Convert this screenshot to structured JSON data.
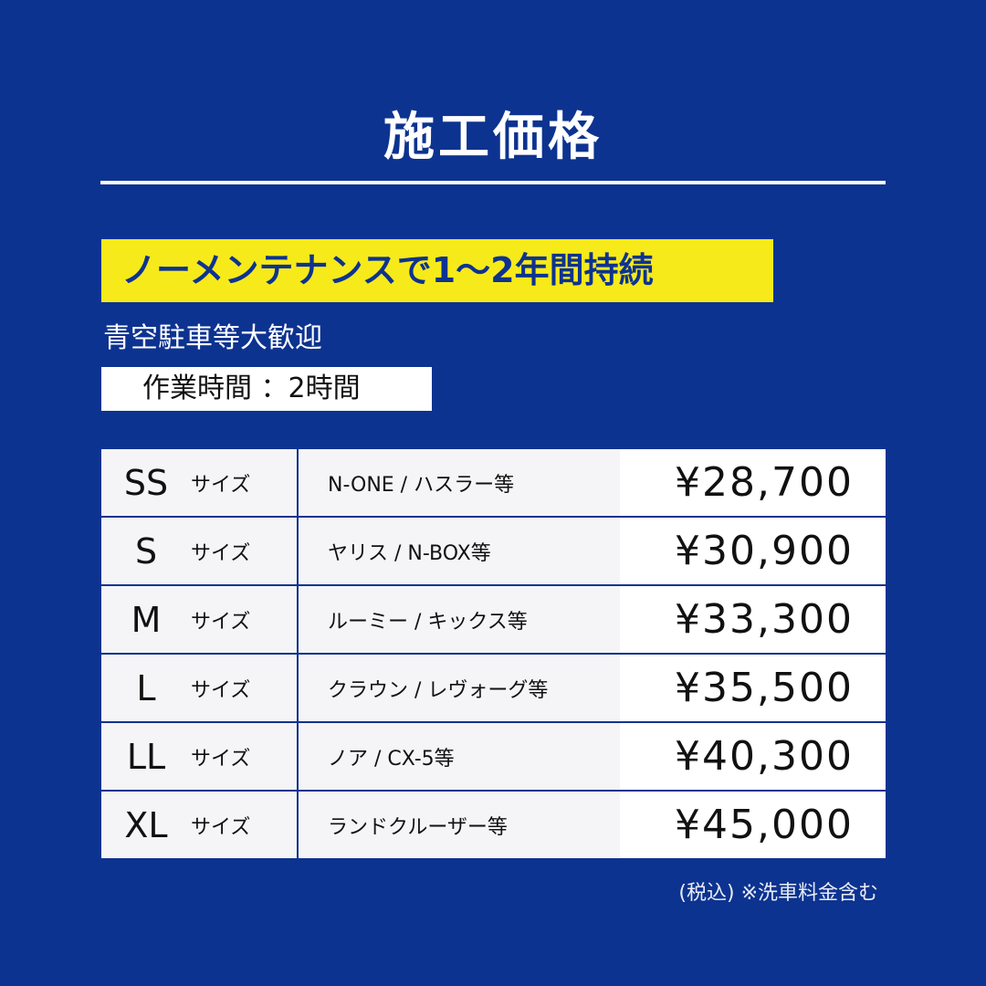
{
  "title": "施工価格",
  "banner": "ノーメンテナンスで1～2年間持続",
  "subtitle": "青空駐車等大歓迎",
  "work_time": "作業時間 ：2時間",
  "size_suffix": "サイズ",
  "rows": [
    {
      "size": "SS",
      "cars": "N-ONE / ハスラー等",
      "price": "¥28,700"
    },
    {
      "size": "S",
      "cars": "ヤリス / N-BOX等",
      "price": "¥30,900"
    },
    {
      "size": "M",
      "cars": "ルーミー / キックス等",
      "price": "¥33,300"
    },
    {
      "size": "L",
      "cars": "クラウン / レヴォーグ等",
      "price": "¥35,500"
    },
    {
      "size": "LL",
      "cars": "ノア / CX-5等",
      "price": "¥40,300"
    },
    {
      "size": "XL",
      "cars": "ランドクルーザー等",
      "price": "¥45,000"
    }
  ],
  "note": "(税込) ※洗車料金含む",
  "colors": {
    "background": "#0d3390",
    "banner": "#f7ea1a",
    "cell": "#f5f4f7"
  }
}
